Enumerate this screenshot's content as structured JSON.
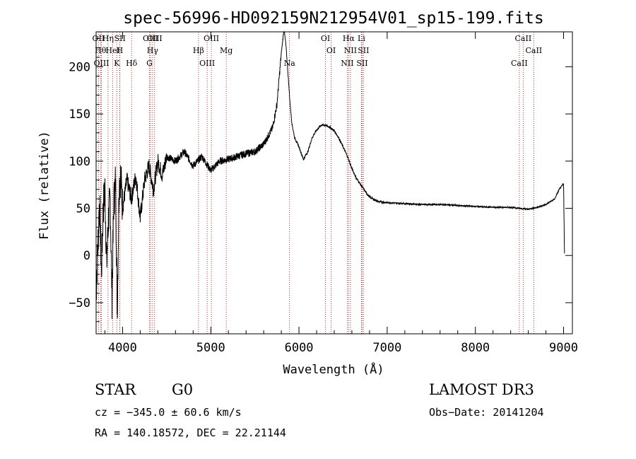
{
  "chart_data": {
    "type": "line",
    "title": "spec-56996-HD092159N212954V01_sp15-199.fits",
    "xlabel": "Wavelength (Å)",
    "ylabel": "Flux (relative)",
    "xlim": [
      3700,
      9100
    ],
    "ylim": [
      -83,
      237
    ],
    "xticks": [
      4000,
      5000,
      6000,
      7000,
      8000,
      9000
    ],
    "yticks": [
      -50,
      0,
      50,
      100,
      150,
      200
    ],
    "series": [
      {
        "name": "spectrum",
        "x": [
          3700,
          3720,
          3740,
          3760,
          3780,
          3800,
          3820,
          3840,
          3860,
          3880,
          3900,
          3920,
          3940,
          3960,
          3980,
          4000,
          4050,
          4100,
          4150,
          4200,
          4250,
          4300,
          4350,
          4400,
          4450,
          4500,
          4600,
          4700,
          4800,
          4900,
          5000,
          5100,
          5200,
          5300,
          5400,
          5500,
          5600,
          5700,
          5750,
          5800,
          5830,
          5850,
          5870,
          5900,
          5920,
          5950,
          6000,
          6050,
          6100,
          6150,
          6200,
          6250,
          6300,
          6350,
          6400,
          6450,
          6500,
          6550,
          6600,
          6650,
          6700,
          6750,
          6800,
          6900,
          7000,
          7200,
          7400,
          7600,
          7800,
          8000,
          8200,
          8400,
          8500,
          8600,
          8700,
          8800,
          8900,
          8950,
          9000,
          9005,
          9010
        ],
        "y": [
          -40,
          10,
          60,
          -20,
          50,
          70,
          -10,
          40,
          60,
          -45,
          55,
          80,
          -60,
          75,
          85,
          50,
          80,
          60,
          85,
          40,
          80,
          95,
          70,
          100,
          85,
          105,
          100,
          110,
          95,
          105,
          90,
          100,
          102,
          105,
          108,
          110,
          118,
          135,
          160,
          215,
          240,
          225,
          200,
          160,
          140,
          125,
          115,
          102,
          110,
          125,
          133,
          138,
          138,
          136,
          132,
          125,
          115,
          105,
          92,
          82,
          75,
          68,
          62,
          57,
          56,
          55,
          54,
          54,
          53,
          52,
          51,
          51,
          50,
          49,
          51,
          54,
          60,
          70,
          76,
          40,
          2
        ]
      }
    ],
    "line_markers": [
      {
        "label": "OII",
        "x": 3727
      },
      {
        "label": "Hθ",
        "x": 3750
      },
      {
        "label": "OIII",
        "x": 3760
      },
      {
        "label": "Hη",
        "x": 3835
      },
      {
        "label": "HeI",
        "x": 3889
      },
      {
        "label": "K",
        "x": 3934
      },
      {
        "label": "SII",
        "x": 3970
      },
      {
        "label": "H",
        "x": 3968
      },
      {
        "label": "Hδ",
        "x": 4102
      },
      {
        "label": "OIII",
        "x": 4317
      },
      {
        "label": "Hγ",
        "x": 4340
      },
      {
        "label": "G",
        "x": 4305
      },
      {
        "label": "OIII",
        "x": 4363
      },
      {
        "label": "Hβ",
        "x": 4861
      },
      {
        "label": "OIII",
        "x": 4959
      },
      {
        "label": "OIII",
        "x": 5007
      },
      {
        "label": "Mg",
        "x": 5175
      },
      {
        "label": "Na",
        "x": 5893
      },
      {
        "label": "OI",
        "x": 6300
      },
      {
        "label": "OI",
        "x": 6364
      },
      {
        "label": "NII",
        "x": 6548
      },
      {
        "label": "Hα",
        "x": 6563
      },
      {
        "label": "NII",
        "x": 6584
      },
      {
        "label": "SII",
        "x": 6716
      },
      {
        "label": "Li",
        "x": 6708
      },
      {
        "label": "SII",
        "x": 6731
      },
      {
        "label": "CaII",
        "x": 8498
      },
      {
        "label": "CaII",
        "x": 8542
      },
      {
        "label": "CaII",
        "x": 8662
      }
    ],
    "marker_color": "#b00000"
  },
  "info": {
    "class": "STAR",
    "subclass": "G0",
    "survey": "LAMOST DR3",
    "cz": "cz = −345.0 ± 60.6 km/s",
    "obsdate": "Obs−Date: 20141204",
    "coords": "RA = 140.18572, DEC =  22.21144"
  }
}
